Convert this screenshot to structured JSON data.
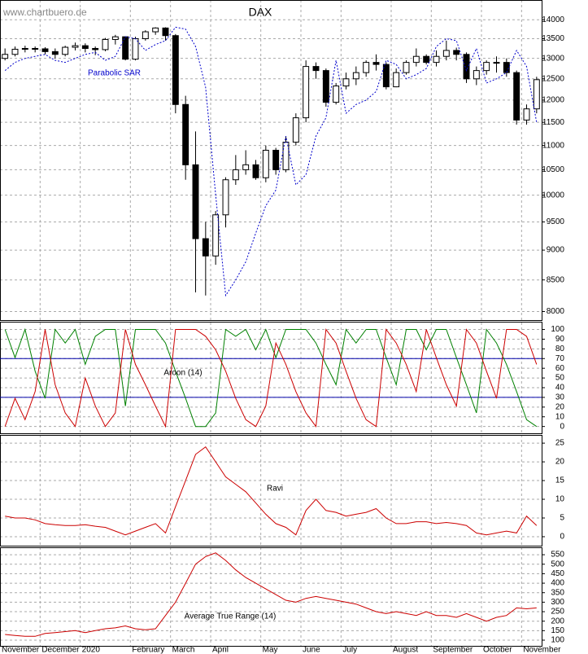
{
  "chart_data": [
    {
      "type": "candlestick",
      "title": "DAX",
      "watermark": "www.chartbuero.de",
      "categories": [
        "November",
        null,
        null,
        null,
        "December",
        null,
        null,
        null,
        "2020",
        null,
        null,
        null,
        null,
        "February",
        null,
        null,
        null,
        "March",
        null,
        null,
        null,
        "April",
        null,
        null,
        null,
        null,
        "May",
        null,
        null,
        null,
        "June",
        null,
        null,
        null,
        "July",
        null,
        null,
        null,
        null,
        "August",
        null,
        null,
        null,
        "September",
        null,
        null,
        null,
        null,
        "October",
        null,
        null,
        null,
        "November",
        null
      ],
      "open": [
        13000,
        13100,
        13230,
        13250,
        13240,
        13170,
        13100,
        13280,
        13320,
        13250,
        13220,
        13480,
        13550,
        12980,
        13500,
        13680,
        13780,
        13580,
        11900,
        10600,
        9200,
        8900,
        9630,
        10300,
        10500,
        10600,
        10340,
        10900,
        10500,
        11070,
        11600,
        12800,
        12700,
        11950,
        12330,
        12500,
        12650,
        12900,
        12850,
        12310,
        12650,
        12900,
        13050,
        12900,
        13050,
        13200,
        13100,
        12500,
        12700,
        12900,
        12900,
        12650,
        11550,
        11800
      ],
      "high": [
        13250,
        13300,
        13320,
        13300,
        13280,
        13250,
        13320,
        13400,
        13380,
        13300,
        13520,
        13600,
        13560,
        13550,
        13720,
        13800,
        13800,
        13620,
        12100,
        11300,
        9500,
        9700,
        10350,
        10800,
        10900,
        10700,
        11000,
        10950,
        11200,
        11700,
        12950,
        12900,
        12750,
        12400,
        12650,
        12800,
        12950,
        13100,
        12900,
        12750,
        12950,
        13250,
        13100,
        13200,
        13450,
        13270,
        13150,
        12800,
        12950,
        13050,
        13000,
        12700,
        11900,
        12550
      ],
      "low": [
        12950,
        13050,
        13150,
        13150,
        13100,
        13000,
        13050,
        13200,
        13150,
        13080,
        13180,
        13350,
        12950,
        12950,
        13450,
        13600,
        13450,
        11700,
        10300,
        8300,
        8250,
        8750,
        9400,
        10200,
        10400,
        10300,
        10250,
        10400,
        10450,
        11000,
        11500,
        12500,
        11850,
        11900,
        12250,
        12350,
        12550,
        12700,
        12250,
        12300,
        12600,
        12800,
        12850,
        12800,
        12950,
        12950,
        12400,
        12350,
        12600,
        12650,
        12550,
        11450,
        11450,
        11700
      ],
      "close": [
        13100,
        13230,
        13250,
        13240,
        13170,
        13100,
        13280,
        13320,
        13250,
        13220,
        13480,
        13550,
        12980,
        13500,
        13680,
        13780,
        13580,
        11900,
        10600,
        9200,
        8900,
        9630,
        10300,
        10500,
        10600,
        10340,
        10900,
        10500,
        11070,
        11600,
        12800,
        12700,
        11950,
        12330,
        12500,
        12650,
        12900,
        12850,
        12310,
        12650,
        12900,
        13050,
        12900,
        13050,
        13200,
        13100,
        12500,
        12700,
        12900,
        12900,
        12650,
        11550,
        11800,
        12480
      ],
      "color": "#000000",
      "series": [
        {
          "name": "Parabolic SAR",
          "color": "#0000cc",
          "values": [
            12700,
            12900,
            13000,
            13050,
            13100,
            12950,
            12900,
            13000,
            13100,
            13150,
            12950,
            13050,
            13550,
            13500,
            13200,
            13350,
            13450,
            13800,
            13750,
            13300,
            12300,
            10000,
            8250,
            8500,
            8800,
            9300,
            9800,
            10100,
            11200,
            10200,
            10400,
            11200,
            11600,
            12950,
            11700,
            11900,
            12000,
            12200,
            12950,
            12850,
            12500,
            12600,
            12750,
            13300,
            13500,
            13450,
            12700,
            13250,
            12400,
            12500,
            12650,
            13200,
            12800,
            11500
          ]
        }
      ],
      "log_scale": true,
      "grid": true,
      "ylim": [
        7870,
        14540
      ],
      "yticks": [
        8000,
        8500,
        9000,
        9500,
        10000,
        10500,
        11000,
        11500,
        12000,
        12500,
        13000,
        13500,
        14000
      ]
    },
    {
      "type": "line",
      "label": "Aroon (14)",
      "grid": true,
      "series": [
        {
          "color": "#008000",
          "values": [
            100,
            71,
            100,
            57,
            29,
            100,
            86,
            100,
            64,
            93,
            100,
            100,
            21,
            100,
            100,
            100,
            86,
            57,
            29,
            0,
            0,
            14,
            100,
            93,
            100,
            79,
            100,
            71,
            100,
            100,
            100,
            86,
            64,
            43,
            100,
            86,
            100,
            100,
            71,
            43,
            100,
            100,
            79,
            100,
            100,
            71,
            43,
            14,
            100,
            86,
            64,
            36,
            7,
            0
          ]
        },
        {
          "color": "#cc0000",
          "values": [
            0,
            29,
            7,
            36,
            100,
            43,
            14,
            0,
            50,
            21,
            0,
            14,
            100,
            64,
            43,
            21,
            0,
            100,
            100,
            100,
            93,
            79,
            57,
            29,
            7,
            0,
            21,
            86,
            64,
            36,
            14,
            0,
            100,
            86,
            57,
            29,
            7,
            0,
            100,
            86,
            64,
            36,
            100,
            71,
            43,
            21,
            100,
            86,
            57,
            29,
            100,
            100,
            93,
            64
          ]
        }
      ],
      "levels": [
        70,
        30
      ],
      "level_color": "#0000aa",
      "ylim": [
        -7,
        108
      ],
      "yticks": [
        0,
        10,
        20,
        30,
        40,
        50,
        60,
        70,
        80,
        90,
        100
      ]
    },
    {
      "type": "line",
      "label": "Ravi",
      "grid": true,
      "series": [
        {
          "color": "#cc0000",
          "values": [
            5.5,
            5,
            5,
            4.5,
            3.5,
            3.2,
            3,
            3,
            3.2,
            2.8,
            2.5,
            1.5,
            0.5,
            1.5,
            2.5,
            3.5,
            1,
            8,
            15,
            22,
            24,
            20,
            16,
            14,
            12,
            9,
            6,
            3.5,
            2.5,
            0.5,
            7,
            10,
            7,
            6.5,
            5.5,
            6,
            6.5,
            7.5,
            5,
            3.5,
            3.5,
            4,
            4,
            3.5,
            3.8,
            3.5,
            3,
            1,
            0.5,
            1,
            1.5,
            1,
            5.5,
            3
          ]
        }
      ],
      "ylim": [
        -2.4,
        27.2
      ],
      "yticks": [
        0,
        5,
        10,
        15,
        20,
        25
      ]
    },
    {
      "type": "line",
      "label": "Average True Range (14)",
      "grid": true,
      "series": [
        {
          "color": "#cc0000",
          "values": [
            130,
            125,
            120,
            120,
            135,
            140,
            145,
            150,
            140,
            150,
            160,
            165,
            175,
            160,
            155,
            160,
            230,
            300,
            400,
            500,
            540,
            560,
            520,
            470,
            430,
            400,
            370,
            340,
            310,
            300,
            320,
            330,
            320,
            310,
            300,
            290,
            270,
            250,
            240,
            250,
            240,
            230,
            250,
            230,
            230,
            220,
            240,
            220,
            200,
            220,
            230,
            270,
            265,
            270
          ]
        }
      ],
      "ylim": [
        70,
        589
      ],
      "yticks": [
        100,
        150,
        200,
        250,
        300,
        350,
        400,
        450,
        500,
        550
      ]
    }
  ]
}
